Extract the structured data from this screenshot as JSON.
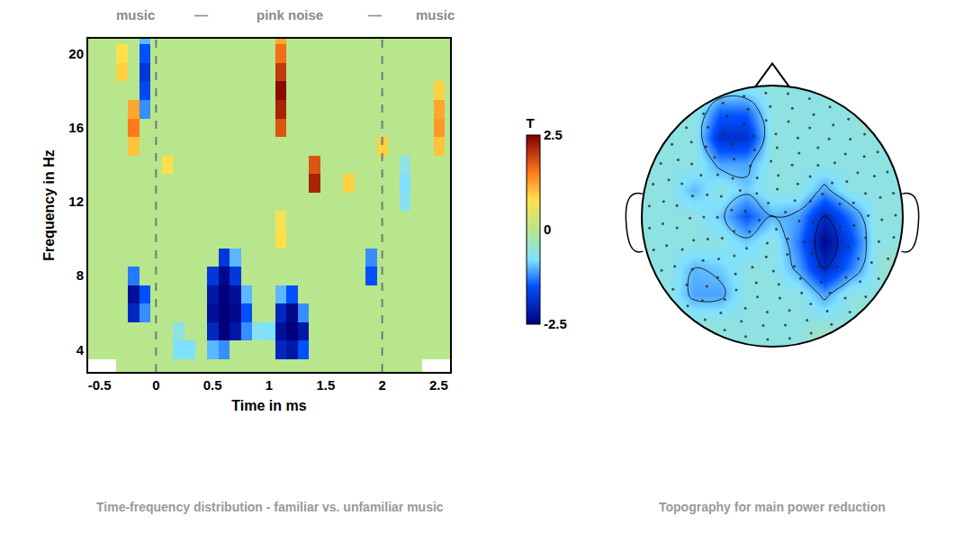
{
  "chart_data": [
    {
      "type": "heatmap",
      "title": "Time-frequency distribution - familiar vs. unfamiliar music",
      "annotations": [
        "music",
        "—",
        "pink noise",
        "—",
        "music"
      ],
      "xlabel": "Time in ms",
      "ylabel": "Frequency in Hz",
      "event_lines": [
        0,
        2
      ],
      "xlim": [
        -0.6,
        2.6
      ],
      "ylim": [
        2.8,
        20.8
      ],
      "xticks": [
        -0.5,
        0,
        0.5,
        1,
        1.5,
        2,
        2.5
      ],
      "yticks": [
        4,
        8,
        12,
        16,
        20
      ],
      "x": [
        -0.6,
        -0.5,
        -0.4,
        -0.3,
        -0.2,
        -0.1,
        0,
        0.1,
        0.2,
        0.3,
        0.4,
        0.5,
        0.6,
        0.7,
        0.8,
        0.9,
        1,
        1.1,
        1.2,
        1.3,
        1.4,
        1.5,
        1.6,
        1.7,
        1.8,
        1.9,
        2,
        2.1,
        2.2,
        2.3,
        2.4,
        2.5,
        2.6
      ],
      "y": [
        3,
        4,
        5,
        6,
        7,
        8,
        9,
        10,
        11,
        12,
        13,
        14,
        15,
        16,
        17,
        18,
        19,
        20,
        21
      ],
      "z": [
        [
          null,
          null,
          null,
          0,
          0,
          0,
          0,
          0,
          0,
          0,
          0,
          0,
          0,
          0,
          0,
          0,
          0,
          0,
          0,
          0,
          0,
          0,
          0,
          0,
          0,
          0,
          0,
          0,
          0,
          0,
          null,
          null,
          null
        ],
        [
          0,
          0,
          0,
          0,
          0,
          0,
          0,
          0,
          -0.8,
          -0.8,
          0,
          -1,
          -1.2,
          0,
          0,
          0,
          0,
          -2,
          -2.2,
          -1.5,
          0,
          0,
          0,
          0,
          0,
          0,
          0,
          0,
          0,
          0,
          0,
          0,
          0
        ],
        [
          0,
          0,
          0,
          0,
          0,
          0,
          0,
          0,
          -0.6,
          0,
          0,
          -2,
          -2.5,
          -2.2,
          -1.2,
          -0.7,
          -0.8,
          -2.3,
          -2.5,
          -2.2,
          0,
          0,
          0,
          0,
          0,
          0,
          0,
          0,
          0,
          0,
          0,
          0,
          0
        ],
        [
          0,
          0,
          0,
          0,
          -2,
          -1.2,
          0,
          0,
          0,
          0,
          0,
          -2.3,
          -2.5,
          -2.4,
          -1.5,
          0,
          0,
          -2,
          -2.4,
          -1.2,
          0,
          0,
          0,
          0,
          0,
          0,
          0,
          0,
          0,
          0,
          0,
          0,
          0
        ],
        [
          0,
          0,
          0,
          0,
          -2.3,
          -1.5,
          0,
          0,
          0,
          0,
          0,
          -2.2,
          -2.5,
          -2.3,
          -1,
          0,
          0,
          -1,
          -1.5,
          0,
          0,
          0,
          0,
          0,
          0,
          0,
          0,
          0,
          0,
          0,
          0,
          0,
          0
        ],
        [
          0,
          0,
          0,
          0,
          -1.3,
          0,
          0,
          0,
          0,
          0,
          0,
          -1.8,
          -2.4,
          -1.8,
          0,
          0,
          0,
          0,
          0,
          0,
          0,
          0,
          0,
          0,
          0,
          -1.5,
          0,
          0,
          0,
          0,
          0,
          0,
          0
        ],
        [
          0,
          0,
          0,
          0,
          0,
          0,
          0,
          0,
          0,
          0,
          0,
          0,
          -1.8,
          -1,
          0,
          0,
          0,
          0,
          0,
          0,
          0,
          0,
          0,
          0,
          0,
          -1.2,
          0,
          0,
          0,
          0,
          0,
          0,
          0
        ],
        [
          0,
          0,
          0,
          0,
          0,
          0,
          0,
          0,
          0,
          0,
          0,
          0,
          0,
          0,
          0,
          0,
          0,
          0.8,
          0,
          0,
          0,
          0,
          0,
          0,
          0,
          0,
          0,
          0,
          0,
          0,
          0,
          0,
          0
        ],
        [
          0,
          0,
          0,
          0,
          0,
          0,
          0,
          0,
          0,
          0,
          0,
          0,
          0,
          0,
          0,
          0,
          0,
          0.7,
          0,
          0,
          0,
          0,
          0,
          0,
          0,
          0,
          0,
          0,
          0,
          0,
          0,
          0,
          0
        ],
        [
          0,
          0,
          0,
          0,
          0,
          0,
          0,
          0,
          0,
          0,
          0,
          0,
          0,
          0,
          0,
          0,
          0,
          0,
          0,
          0,
          0,
          0,
          0,
          0,
          0,
          0,
          0,
          0,
          -0.7,
          0,
          0,
          0,
          0
        ],
        [
          0,
          0,
          0,
          0,
          0,
          0,
          0,
          0,
          0,
          0,
          0,
          0,
          0,
          0,
          0,
          0,
          0,
          0,
          0,
          0,
          2.2,
          0,
          0,
          0.9,
          0,
          0,
          0,
          0,
          -0.8,
          0,
          0,
          0,
          0
        ],
        [
          0,
          0,
          0,
          0,
          0,
          0,
          0,
          0.8,
          0,
          0,
          0,
          0,
          0,
          0,
          0,
          0,
          0,
          0,
          0,
          0,
          1.8,
          0,
          0,
          0,
          0,
          0,
          0,
          0,
          -0.6,
          0,
          0,
          0,
          0
        ],
        [
          0,
          0,
          0,
          0,
          1,
          0,
          0,
          0,
          0,
          0,
          0,
          0,
          0,
          0,
          0,
          0,
          0,
          0,
          0,
          0,
          0,
          0,
          0,
          0,
          0,
          0,
          0.9,
          0,
          0,
          0,
          0,
          1,
          0
        ],
        [
          0,
          0,
          0,
          0,
          1.5,
          0,
          0,
          0,
          0,
          0,
          0,
          0,
          0,
          0,
          0,
          0,
          0,
          1.8,
          0,
          0,
          0,
          0,
          0,
          0,
          0,
          0,
          0,
          0,
          0,
          0,
          0,
          1.3,
          0
        ],
        [
          0,
          0,
          0,
          0,
          1.2,
          -1.2,
          0,
          0,
          0,
          0,
          0,
          0,
          0,
          0,
          0,
          0,
          0,
          2.2,
          0,
          0,
          0,
          0,
          0,
          0,
          0,
          0,
          0,
          0,
          0,
          0,
          0,
          1.2,
          0
        ],
        [
          0,
          0,
          0,
          0,
          0,
          -1.6,
          0,
          0,
          0,
          0,
          0,
          0,
          0,
          0,
          0,
          0,
          0,
          2.4,
          0,
          0,
          0,
          0,
          0,
          0,
          0,
          0,
          0,
          0,
          0,
          0,
          0,
          0.9,
          0
        ],
        [
          0,
          0,
          0,
          0.9,
          0,
          -1.8,
          0,
          0,
          0,
          0,
          0,
          0,
          0,
          0,
          0,
          0,
          0,
          2,
          0,
          0,
          0,
          0,
          0,
          0,
          0,
          0,
          0,
          0,
          0,
          0,
          0,
          0,
          0
        ],
        [
          0,
          0,
          0,
          0.8,
          0,
          -1.5,
          0,
          0,
          0,
          0,
          0,
          0,
          0,
          0,
          0,
          0,
          0,
          1.6,
          0,
          0,
          0,
          0,
          0,
          0,
          0,
          0,
          0,
          0,
          0,
          0,
          0,
          0,
          0
        ],
        [
          0,
          0,
          0,
          0,
          0,
          -1,
          0,
          0,
          0,
          0,
          0,
          0,
          0,
          0,
          0,
          0,
          0,
          1.2,
          0,
          0,
          0,
          0,
          0,
          0,
          0,
          0,
          0,
          0,
          0,
          0,
          0,
          0,
          0
        ]
      ],
      "colorbar": {
        "title": "T",
        "range": [
          -2.5,
          2.5
        ],
        "ticks": [
          2.5,
          0,
          -2.5
        ]
      }
    },
    {
      "type": "contour",
      "title": "Topography for main power reduction",
      "tick_labels": false,
      "xlim": [
        -1.2,
        1.2
      ],
      "ylim": [
        -1.2,
        1.2
      ],
      "zlim": [
        -2.5,
        2.5
      ],
      "x": [
        -1.2,
        -1,
        -0.8,
        -0.6,
        -0.4,
        -0.2,
        0,
        0.2,
        0.4,
        0.6,
        0.8,
        1,
        1.2
      ],
      "y": [
        -1.2,
        -1,
        -0.8,
        -0.6,
        -0.4,
        -0.2,
        0,
        0.2,
        0.4,
        0.6,
        0.8,
        1,
        1.2
      ],
      "z": [
        [
          -0.6,
          -0.6,
          -0.6,
          -0.6,
          -0.6,
          -0.6,
          -0.6,
          -0.6,
          -0.6,
          -0.6,
          -0.6,
          -0.6,
          -0.6
        ],
        [
          -0.6,
          -0.6,
          -0.6,
          -0.2,
          -0.6,
          -0.6,
          -0.6,
          -0.6,
          -0.1,
          -0.6,
          -0.6,
          -0.6,
          -0.6
        ],
        [
          -0.6,
          -0.6,
          -0.6,
          -0.6,
          -0.6,
          -0.6,
          -0.6,
          -0.6,
          -0.6,
          -0.6,
          -0.3,
          -0.6,
          -0.6
        ],
        [
          -0.6,
          -0.6,
          -0.6,
          -1.1,
          -1.1,
          -0.6,
          -0.6,
          -0.6,
          -1.1,
          -0.6,
          -0.6,
          -0.6,
          -0.6
        ],
        [
          -0.6,
          -0.6,
          -0.6,
          -1,
          -0.9,
          -0.6,
          -0.6,
          -1.1,
          -2,
          -1.3,
          -0.6,
          -0.2,
          -0.6
        ],
        [
          -0.6,
          -0.6,
          -0.6,
          -0.6,
          -0.6,
          -0.9,
          -0.6,
          -1.3,
          -2.4,
          -1.6,
          -0.6,
          -0.6,
          -0.6
        ],
        [
          -0.6,
          -0.6,
          -0.6,
          -0.6,
          -0.9,
          -1.5,
          -1,
          -1.1,
          -2,
          -1.3,
          -0.6,
          -0.6,
          -0.6
        ],
        [
          -0.6,
          -0.6,
          -0.6,
          -1,
          -0.6,
          -0.9,
          -0.6,
          -0.6,
          -1.1,
          -0.6,
          -0.6,
          -0.6,
          -0.6
        ],
        [
          -0.6,
          -0.6,
          -0.6,
          -0.6,
          -1.1,
          -1.1,
          -0.6,
          -0.6,
          -0.6,
          -0.6,
          -0.6,
          -0.6,
          -0.6
        ],
        [
          -0.6,
          -0.6,
          -0.6,
          -0.6,
          -1.9,
          -1.9,
          -0.6,
          -0.6,
          -0.6,
          -0.6,
          -0.6,
          -0.6,
          -0.6
        ],
        [
          -0.6,
          -0.6,
          -0.6,
          -0.6,
          -1.4,
          -1.4,
          -0.6,
          -0.6,
          -0.6,
          -0.6,
          -0.1,
          -0.6,
          -0.6
        ],
        [
          -0.6,
          -0.6,
          -0.6,
          -0.2,
          -0.6,
          -0.6,
          -0.6,
          -0.6,
          -0.6,
          -0.6,
          -0.6,
          -0.6,
          -0.6
        ],
        [
          -0.6,
          -0.6,
          -0.6,
          -0.6,
          -0.6,
          -0.6,
          -0.6,
          -0.6,
          -0.6,
          -0.6,
          -0.6,
          -0.6,
          -0.6
        ]
      ]
    }
  ]
}
